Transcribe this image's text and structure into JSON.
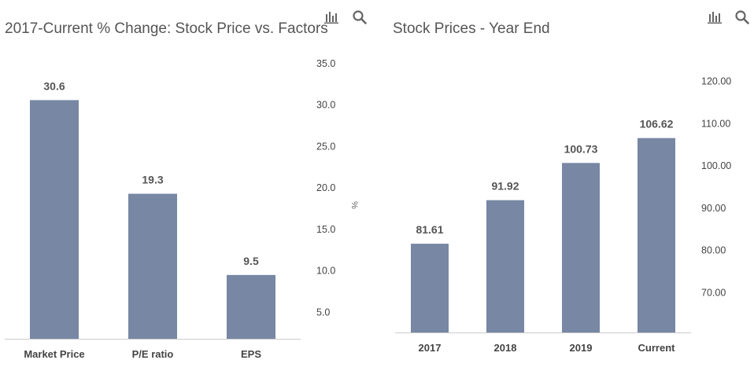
{
  "charts": [
    {
      "title": "2017-Current % Change: Stock Price vs. Factors",
      "unit": "%",
      "chart_data": {
        "type": "bar",
        "categories": [
          "Market Price",
          "P/E ratio",
          "EPS"
        ],
        "values": [
          30.6,
          19.3,
          9.5
        ],
        "value_labels": [
          "30.6",
          "19.3",
          "9.5"
        ],
        "ylim": [
          1.8,
          35.0
        ],
        "yticks": [
          5.0,
          10.0,
          15.0,
          20.0,
          25.0,
          30.0,
          35.0
        ],
        "ytick_labels": [
          "5.0",
          "10.0",
          "15.0",
          "20.0",
          "25.0",
          "30.0",
          "35.0"
        ],
        "yaxis_side": "right",
        "color": "#7787a4"
      }
    },
    {
      "title": "Stock Prices - Year End",
      "unit": "",
      "chart_data": {
        "type": "bar",
        "categories": [
          "2017",
          "2018",
          "2019",
          "Current"
        ],
        "values": [
          81.61,
          91.92,
          100.73,
          106.62
        ],
        "value_labels": [
          "81.61",
          "91.92",
          "100.73",
          "106.62"
        ],
        "ylim": [
          60.6,
          122.0
        ],
        "yticks": [
          70,
          80,
          90,
          100,
          110,
          120
        ],
        "ytick_labels": [
          "70.00",
          "80.00",
          "90.00",
          "100.00",
          "110.00",
          "120.00"
        ],
        "yaxis_side": "right",
        "color": "#7787a4"
      }
    }
  ],
  "icons": {
    "chart_toggle": "bar-chart-icon",
    "search": "search-icon"
  }
}
